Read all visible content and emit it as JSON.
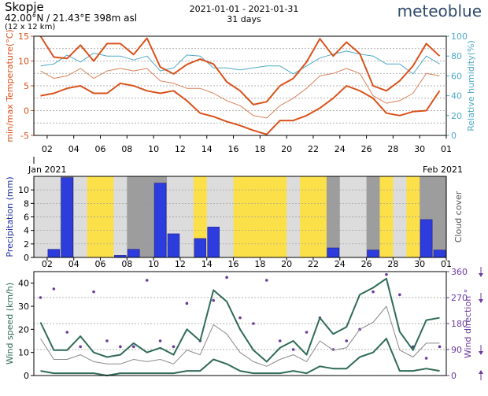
{
  "header": {
    "city": "Skopje",
    "coords": "42.00°N / 21.43°E   398m asl",
    "grid": "(12 x 12 km)",
    "range": "2021-01-01 - 2021-01-31",
    "days": "31 days",
    "brand": "meteoblue"
  },
  "colors": {
    "temp": "#d9511a",
    "temp_thin": "#d9825a",
    "humidity": "#4fa9c8",
    "precip": "#2d3ddd",
    "cloud_clear": "#fbe04a",
    "cloud_partly": "#dcdcdc",
    "cloud_overcast": "#9d9d9d",
    "wind": "#2e6b55",
    "wind_thin": "#8a8a8a",
    "wind_dir": "#6b3a9e",
    "precip_label": "#1f2d9d"
  },
  "chart_data": [
    {
      "type": "line",
      "panel": "temperature-humidity",
      "ylabel": "min/max Temperature(°C)",
      "ylabel2": "Relative humidity(%)",
      "ylim": [
        -5,
        15
      ],
      "ylim2": [
        0,
        100
      ],
      "yticks": [
        -5,
        0,
        5,
        10,
        15
      ],
      "yticks2": [
        0,
        20,
        40,
        60,
        80,
        100
      ],
      "x": [
        1,
        2,
        3,
        4,
        5,
        6,
        7,
        8,
        9,
        10,
        11,
        12,
        13,
        14,
        15,
        16,
        17,
        18,
        19,
        20,
        21,
        22,
        23,
        24,
        25,
        26,
        27,
        28,
        29,
        30,
        31
      ],
      "xtick_labels": [
        "02",
        "04",
        "06",
        "08",
        "10",
        "12",
        "14",
        "16",
        "18",
        "20",
        "22",
        "24",
        "26",
        "28",
        "30",
        "01"
      ],
      "xlabel_start": "Jan 2021",
      "xlabel_end": "Feb 2021",
      "series": [
        {
          "role": "max",
          "values": [
            15,
            10.8,
            10.5,
            13.2,
            10,
            13.5,
            13.5,
            11.3,
            14.6,
            8.8,
            7.4,
            9.3,
            10.4,
            9.4,
            5.8,
            4,
            1.2,
            1.8,
            5,
            6.5,
            9.8,
            14.5,
            11,
            13.8,
            11.5,
            5,
            4,
            6,
            9,
            13.5,
            11
          ]
        },
        {
          "role": "min",
          "values": [
            3,
            3.5,
            4.5,
            5,
            3.5,
            3.5,
            5.5,
            5,
            4,
            3.5,
            4,
            2,
            -0.5,
            -1.2,
            -2.2,
            -3,
            -4,
            -4.8,
            -2,
            -2,
            -1,
            0.5,
            2.5,
            5,
            4,
            2.5,
            -0.5,
            -1,
            -0.2,
            0,
            4
          ]
        },
        {
          "role": "mean",
          "values": [
            8,
            6.5,
            7,
            8.5,
            6.5,
            8,
            8.5,
            8,
            8.5,
            6,
            5.5,
            4.5,
            4.5,
            3.5,
            2,
            1,
            -1,
            -1.5,
            1,
            2.5,
            4.5,
            7,
            7.5,
            8.5,
            7.5,
            3,
            1.5,
            2,
            3.5,
            7.5,
            7
          ]
        },
        {
          "role": "humidity",
          "values": [
            70,
            72,
            81,
            74,
            83,
            80,
            80,
            76,
            80,
            65,
            68,
            81,
            80,
            68,
            68,
            66,
            68,
            70,
            70,
            62,
            70,
            78,
            82,
            85,
            82,
            80,
            72,
            72,
            62,
            80,
            72
          ]
        }
      ]
    },
    {
      "type": "bar",
      "panel": "precipitation-cloud",
      "ylabel": "Precipitation (mm)",
      "ylabel2": "Cloud cover",
      "ylim": [
        0,
        12
      ],
      "yticks": [
        0,
        2,
        4,
        6,
        8,
        10
      ],
      "x": [
        1,
        2,
        3,
        4,
        5,
        6,
        7,
        8,
        9,
        10,
        11,
        12,
        13,
        14,
        15,
        16,
        17,
        18,
        19,
        20,
        21,
        22,
        23,
        24,
        25,
        26,
        27,
        28,
        29,
        30,
        31
      ],
      "values": [
        0,
        1.2,
        11.8,
        0,
        0,
        0,
        0.3,
        1.2,
        0,
        11,
        3.5,
        0,
        2.8,
        4.5,
        0,
        0,
        0,
        0,
        0,
        0,
        0,
        0,
        1.4,
        0,
        0,
        1.1,
        0,
        0,
        0,
        5.6,
        1.1
      ],
      "cloud_cover": [
        1,
        1,
        2,
        1,
        0,
        0,
        1,
        2,
        2,
        2,
        1,
        1,
        0,
        1,
        1,
        0,
        0,
        0,
        0,
        1,
        0,
        0,
        2,
        1,
        1,
        2,
        0,
        1,
        0,
        2,
        2
      ],
      "xtick_labels": [
        "02",
        "04",
        "06",
        "08",
        "10",
        "12",
        "14",
        "16",
        "18",
        "20",
        "22",
        "24",
        "26",
        "28",
        "30",
        "01"
      ]
    },
    {
      "type": "line",
      "panel": "wind",
      "ylabel": "Wind speed (km/h)",
      "ylabel2": "Wind direction °",
      "ylim": [
        0,
        45
      ],
      "ylim2": [
        0,
        360
      ],
      "yticks": [
        0,
        10,
        20,
        30,
        40
      ],
      "yticks2": [
        0,
        90,
        180,
        270,
        360
      ],
      "x": [
        1,
        2,
        3,
        4,
        5,
        6,
        7,
        8,
        9,
        10,
        11,
        12,
        13,
        14,
        15,
        16,
        17,
        18,
        19,
        20,
        21,
        22,
        23,
        24,
        25,
        26,
        27,
        28,
        29,
        30,
        31
      ],
      "series": [
        {
          "role": "max",
          "values": [
            23,
            11,
            11,
            17,
            10,
            8,
            9,
            14,
            10,
            12,
            9,
            20,
            15,
            37,
            32,
            20,
            11,
            6,
            12,
            15,
            9,
            25,
            18,
            21,
            35,
            38,
            42,
            19,
            11,
            24,
            25
          ]
        },
        {
          "role": "mean",
          "values": [
            16,
            7,
            7,
            9,
            6,
            5,
            5,
            7,
            6,
            7,
            5,
            11,
            9,
            22,
            18,
            10,
            6,
            4,
            7,
            9,
            6,
            15,
            11,
            12,
            20,
            23,
            30,
            11,
            8,
            14,
            14
          ]
        },
        {
          "role": "min",
          "values": [
            2,
            1,
            1,
            1,
            1,
            0,
            1,
            1,
            1,
            1,
            1,
            2,
            2,
            7,
            5,
            2,
            1,
            1,
            1,
            2,
            1,
            4,
            3,
            3,
            8,
            10,
            16,
            2,
            2,
            3,
            2
          ]
        },
        {
          "role": "direction",
          "values": [
            270,
            300,
            150,
            100,
            290,
            120,
            100,
            100,
            330,
            120,
            100,
            250,
            120,
            260,
            340,
            200,
            180,
            330,
            120,
            90,
            150,
            200,
            90,
            120,
            160,
            290,
            350,
            280,
            100,
            60,
            100
          ]
        }
      ]
    }
  ]
}
